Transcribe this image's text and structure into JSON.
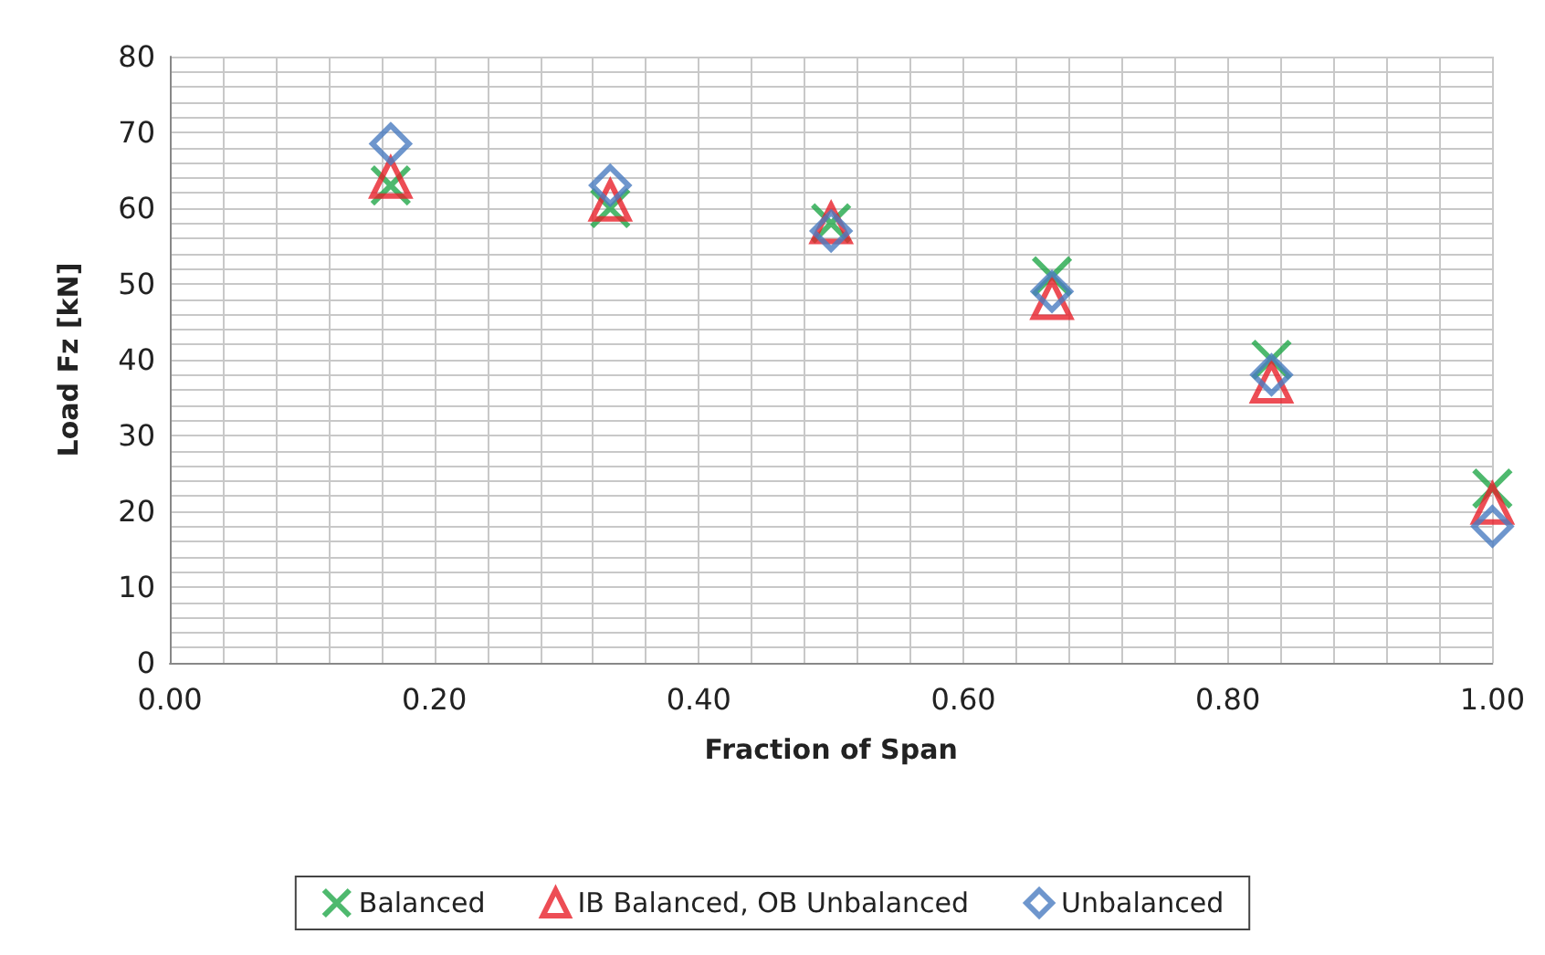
{
  "chart_data": {
    "type": "scatter",
    "xlabel": "Fraction of Span",
    "ylabel": "Load Fz [kN]",
    "x": [
      0.167,
      0.333,
      0.5,
      0.667,
      0.833,
      1.0
    ],
    "series": [
      {
        "name": "Balanced",
        "color": "#22a84a",
        "marker": "cross",
        "values": [
          63,
          60,
          58,
          51,
          40,
          23
        ]
      },
      {
        "name": "IB Balanced, OB Unbalanced",
        "color": "#e8202a",
        "marker": "triangle",
        "values": [
          64,
          61,
          58,
          48,
          37,
          21
        ]
      },
      {
        "name": "Unbalanced",
        "color": "#4a7cc0",
        "marker": "diamond",
        "values": [
          68.5,
          63,
          57,
          49,
          38,
          18
        ]
      }
    ],
    "xlim": [
      0,
      1
    ],
    "xticks": [
      {
        "value": 0,
        "label": "0.00"
      },
      {
        "value": 0.2,
        "label": "0.20"
      },
      {
        "value": 0.4,
        "label": "0.40"
      },
      {
        "value": 0.6,
        "label": "0.60"
      },
      {
        "value": 0.8,
        "label": "0.80"
      },
      {
        "value": 1,
        "label": "1.00"
      }
    ],
    "ylim": [
      0,
      80
    ],
    "yticks": [
      0,
      10,
      20,
      30,
      40,
      50,
      60,
      70,
      80
    ],
    "grid": true,
    "legend": "bottom"
  }
}
